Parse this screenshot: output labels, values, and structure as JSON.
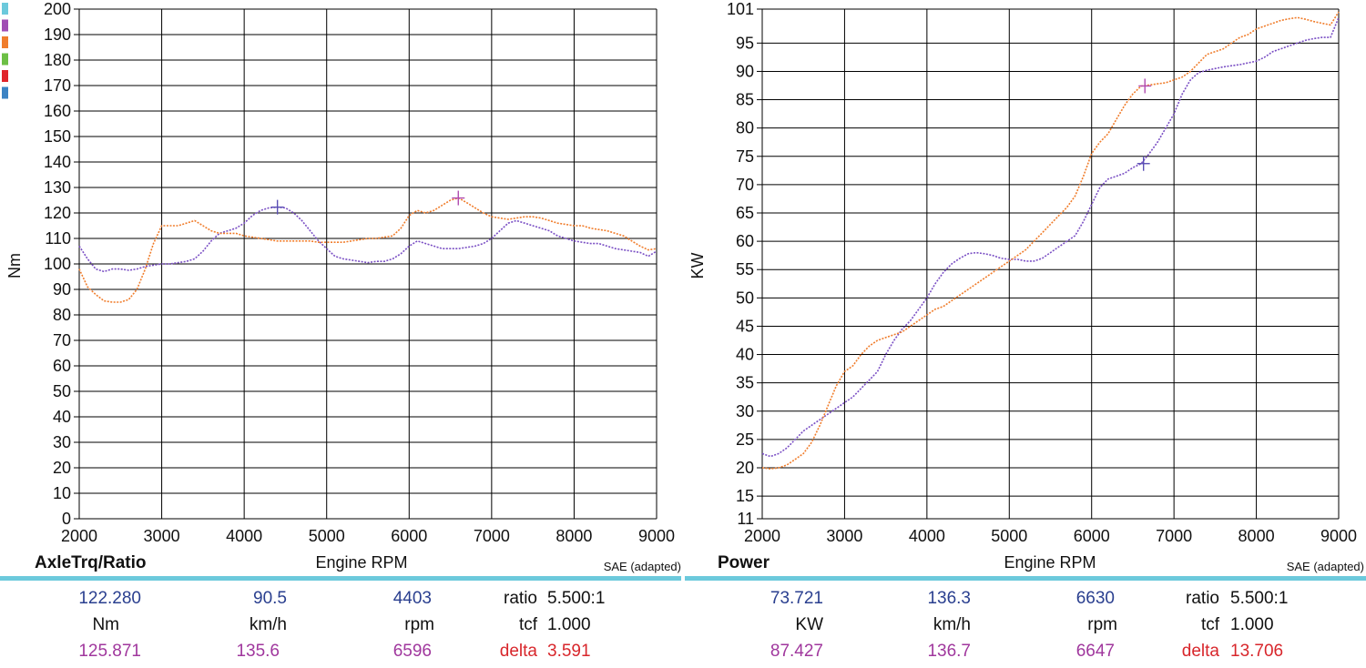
{
  "legend_swatches": [
    "#6cc9dc",
    "#a04eb4",
    "#f07d2c",
    "#6cbf45",
    "#e0242b",
    "#3b83c4"
  ],
  "chart_data": [
    {
      "type": "line",
      "title": "AxleTrq/Ratio",
      "xlabel": "Engine RPM",
      "ylabel": "Nm",
      "note": "SAE (adapted)",
      "xlim": [
        2000,
        9000
      ],
      "ylim": [
        0,
        200
      ],
      "xticks": [
        2000,
        3000,
        4000,
        5000,
        6000,
        7000,
        8000,
        9000
      ],
      "yticks": [
        0,
        10,
        20,
        30,
        40,
        50,
        60,
        70,
        80,
        90,
        100,
        110,
        120,
        130,
        140,
        150,
        160,
        170,
        180,
        190,
        200
      ],
      "series": [
        {
          "color": "#7a4fc4",
          "cursor": [
            4403,
            122.28
          ],
          "x": [
            2000,
            2100,
            2200,
            2300,
            2400,
            2500,
            2600,
            2700,
            2800,
            2900,
            3000,
            3100,
            3200,
            3300,
            3400,
            3500,
            3600,
            3700,
            3800,
            3900,
            4000,
            4100,
            4200,
            4300,
            4400,
            4500,
            4600,
            4700,
            4800,
            4900,
            5000,
            5100,
            5200,
            5300,
            5400,
            5500,
            5600,
            5700,
            5800,
            5900,
            6000,
            6100,
            6200,
            6300,
            6400,
            6500,
            6600,
            6700,
            6800,
            6900,
            7000,
            7100,
            7200,
            7300,
            7400,
            7500,
            7600,
            7700,
            7800,
            7900,
            8000,
            8100,
            8200,
            8300,
            8400,
            8500,
            8600,
            8700,
            8800,
            8900,
            9000
          ],
          "y": [
            107,
            102,
            98,
            97,
            98,
            98,
            97.5,
            98,
            99,
            99.5,
            100,
            100,
            100.5,
            101,
            102,
            105,
            109,
            112,
            113,
            114,
            116,
            119,
            121,
            122,
            122.3,
            122,
            120,
            117,
            113,
            109,
            106,
            103,
            102,
            101.5,
            101,
            100.5,
            101,
            101,
            102,
            104,
            107,
            109,
            108,
            107,
            106,
            106,
            106,
            106.5,
            107,
            108,
            110,
            113,
            116,
            117,
            116,
            115,
            114,
            113,
            111,
            110,
            109,
            108.5,
            108,
            108,
            107,
            106,
            105.5,
            105,
            104.5,
            103,
            105
          ]
        },
        {
          "color": "#f07d2c",
          "cursor": [
            6596,
            125.871
          ],
          "x": [
            2000,
            2100,
            2200,
            2300,
            2400,
            2500,
            2600,
            2700,
            2800,
            2900,
            3000,
            3100,
            3200,
            3300,
            3400,
            3500,
            3600,
            3700,
            3800,
            3900,
            4000,
            4100,
            4200,
            4300,
            4400,
            4500,
            4600,
            4700,
            4800,
            4900,
            5000,
            5100,
            5200,
            5300,
            5400,
            5500,
            5600,
            5700,
            5800,
            5900,
            6000,
            6100,
            6200,
            6300,
            6400,
            6500,
            6600,
            6700,
            6800,
            6900,
            7000,
            7100,
            7200,
            7300,
            7400,
            7500,
            7600,
            7700,
            7800,
            7900,
            8000,
            8100,
            8200,
            8300,
            8400,
            8500,
            8600,
            8700,
            8800,
            8900,
            9000
          ],
          "y": [
            98,
            91,
            88,
            85.5,
            85,
            85,
            86,
            90,
            98,
            108,
            115,
            115,
            115,
            116,
            117,
            115,
            113,
            112,
            112,
            112,
            111,
            110.5,
            110,
            109.5,
            109,
            109,
            109,
            109,
            109,
            108.5,
            108.5,
            108.5,
            108.5,
            109,
            109.5,
            110,
            110,
            110.5,
            111,
            114,
            119,
            121,
            120,
            121,
            123,
            125,
            125.9,
            124,
            122,
            120,
            118.5,
            118,
            117.5,
            118,
            118.5,
            118.5,
            118,
            117,
            116,
            115.5,
            115,
            115,
            114,
            113.5,
            113,
            112,
            111,
            109,
            107,
            105.5,
            106
          ]
        }
      ],
      "readout": {
        "row1": [
          "122.280",
          "90.5",
          "4403",
          "ratio",
          "5.500:1"
        ],
        "row2": [
          "Nm",
          "km/h",
          "rpm",
          "tcf",
          "1.000"
        ],
        "row3": [
          "125.871",
          "135.6",
          "6596",
          "delta",
          "3.591"
        ]
      }
    },
    {
      "type": "line",
      "title": "Power",
      "xlabel": "Engine RPM",
      "ylabel": "KW",
      "note": "SAE (adapted)",
      "xlim": [
        2000,
        9000
      ],
      "ylim": [
        11,
        101
      ],
      "xticks": [
        2000,
        3000,
        4000,
        5000,
        6000,
        7000,
        8000,
        9000
      ],
      "yticks": [
        11,
        15,
        20,
        25,
        30,
        35,
        40,
        45,
        50,
        55,
        60,
        65,
        70,
        75,
        80,
        85,
        90,
        95,
        101
      ],
      "series": [
        {
          "color": "#7a4fc4",
          "cursor": [
            6630,
            73.721
          ],
          "x": [
            2000,
            2100,
            2200,
            2300,
            2400,
            2500,
            2600,
            2700,
            2800,
            2900,
            3000,
            3100,
            3200,
            3300,
            3400,
            3500,
            3600,
            3700,
            3800,
            3900,
            4000,
            4100,
            4200,
            4300,
            4400,
            4500,
            4600,
            4700,
            4800,
            4900,
            5000,
            5100,
            5200,
            5300,
            5400,
            5500,
            5600,
            5700,
            5800,
            5900,
            6000,
            6100,
            6200,
            6300,
            6400,
            6500,
            6600,
            6700,
            6800,
            6900,
            7000,
            7100,
            7200,
            7300,
            7400,
            7500,
            7600,
            7700,
            7800,
            7900,
            8000,
            8100,
            8200,
            8300,
            8400,
            8500,
            8600,
            8700,
            8800,
            8900,
            9000
          ],
          "y": [
            22.5,
            22,
            22.5,
            23.5,
            25,
            26.5,
            27.5,
            28.5,
            29.5,
            30.5,
            31.5,
            32.5,
            34,
            35.5,
            37,
            40,
            42.5,
            44.5,
            46,
            48,
            50,
            52.5,
            54.5,
            56,
            57,
            57.8,
            58,
            57.8,
            57.5,
            57,
            56.8,
            56.8,
            56.5,
            56.5,
            57,
            58,
            59,
            60,
            61,
            63.5,
            66.5,
            69.5,
            71,
            71.5,
            72,
            73,
            73.7,
            75.5,
            77.5,
            80,
            82.5,
            86,
            88.5,
            89.8,
            90.2,
            90.5,
            90.8,
            91,
            91.2,
            91.5,
            91.8,
            92.5,
            93.5,
            94,
            94.5,
            95,
            95.5,
            95.8,
            96,
            96,
            99.5
          ]
        },
        {
          "color": "#f07d2c",
          "cursor": [
            6647,
            87.427
          ],
          "x": [
            2000,
            2100,
            2200,
            2300,
            2400,
            2500,
            2600,
            2700,
            2800,
            2900,
            3000,
            3100,
            3200,
            3300,
            3400,
            3500,
            3600,
            3700,
            3800,
            3900,
            4000,
            4100,
            4200,
            4300,
            4400,
            4500,
            4600,
            4700,
            4800,
            4900,
            5000,
            5100,
            5200,
            5300,
            5400,
            5500,
            5600,
            5700,
            5800,
            5900,
            6000,
            6100,
            6200,
            6300,
            6400,
            6500,
            6600,
            6700,
            6800,
            6900,
            7000,
            7100,
            7200,
            7300,
            7400,
            7500,
            7600,
            7700,
            7800,
            7900,
            8000,
            8100,
            8200,
            8300,
            8400,
            8500,
            8600,
            8700,
            8800,
            8900,
            9000
          ],
          "y": [
            20,
            19.8,
            20,
            20.5,
            21.5,
            22.5,
            24.5,
            27.5,
            31,
            34.5,
            37,
            38,
            40,
            41.5,
            42.5,
            43,
            43.5,
            44,
            45,
            46,
            47,
            48,
            48.5,
            49.5,
            50.5,
            51.5,
            52.5,
            53.5,
            54.5,
            55.5,
            56.5,
            57.5,
            58.5,
            60,
            61.5,
            63,
            64.5,
            66,
            68,
            71.5,
            75.5,
            77.5,
            79,
            81.5,
            84,
            86,
            87.4,
            87.6,
            87.8,
            88,
            88.5,
            89,
            90,
            91.5,
            93,
            93.5,
            94,
            95,
            96,
            96.5,
            97.5,
            98,
            98.5,
            99,
            99.3,
            99.5,
            99.2,
            98.8,
            98.5,
            98.2,
            100.5
          ]
        }
      ],
      "readout": {
        "row1": [
          "73.721",
          "136.3",
          "6630",
          "ratio",
          "5.500:1"
        ],
        "row2": [
          "KW",
          "km/h",
          "rpm",
          "tcf",
          "1.000"
        ],
        "row3": [
          "87.427",
          "136.7",
          "6647",
          "delta",
          "13.706"
        ]
      }
    }
  ]
}
